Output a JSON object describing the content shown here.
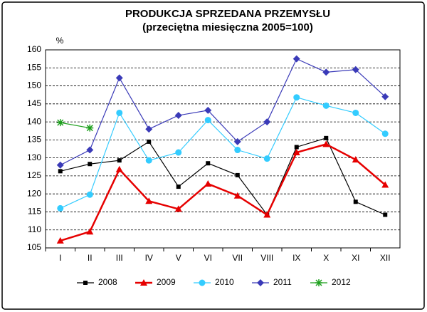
{
  "chart_data": {
    "type": "line",
    "title": "PRODUKCJA SPRZEDANA PRZEMYSŁU",
    "subtitle": "(przeciętna miesięczna 2005=100)",
    "y_label": "%",
    "categories": [
      "I",
      "II",
      "III",
      "IV",
      "V",
      "VI",
      "VII",
      "VIII",
      "IX",
      "X",
      "XI",
      "XII"
    ],
    "series": [
      {
        "name": "2008",
        "color": "#000000",
        "values": [
          126.3,
          128.3,
          129.3,
          134.5,
          122,
          128.5,
          125.2,
          114.2,
          133,
          135.5,
          117.8,
          114.2
        ]
      },
      {
        "name": "2009",
        "color": "#e60000",
        "values": [
          107,
          109.5,
          126.8,
          118,
          115.8,
          122.8,
          119.5,
          114.2,
          131.5,
          133.8,
          129.5,
          122.5
        ]
      },
      {
        "name": "2010",
        "color": "#33ccff",
        "values": [
          116,
          119.8,
          142.5,
          129.3,
          131.5,
          140.5,
          132.2,
          129.8,
          146.8,
          144.5,
          142.5,
          136.7
        ]
      },
      {
        "name": "2011",
        "color": "#3a3ab8",
        "values": [
          128,
          132.2,
          152.2,
          138,
          141.8,
          143.2,
          134.5,
          140,
          157.5,
          153.8,
          154.5,
          147
        ]
      },
      {
        "name": "2012",
        "color": "#1ea01e",
        "values": [
          139.8,
          138.3,
          null,
          null,
          null,
          null,
          null,
          null,
          null,
          null,
          null,
          null
        ]
      }
    ],
    "ylim": [
      105,
      160
    ],
    "yticks": [
      105,
      110,
      115,
      120,
      125,
      130,
      135,
      140,
      145,
      150,
      155,
      160
    ],
    "grid": true,
    "legend": "bottom"
  }
}
